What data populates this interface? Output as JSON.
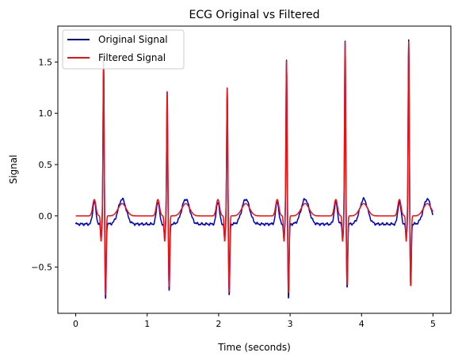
{
  "chart_data": {
    "type": "line",
    "title": "ECG Original vs Filtered",
    "xlabel": "Time (seconds)",
    "ylabel": "Signal",
    "xlim": [
      -0.25,
      5.25
    ],
    "ylim": [
      -0.95,
      1.85
    ],
    "xticks": [
      0,
      1,
      2,
      3,
      4,
      5
    ],
    "xtick_labels": [
      "0",
      "1",
      "2",
      "3",
      "4",
      "5"
    ],
    "yticks": [
      -0.5,
      0.0,
      0.5,
      1.0,
      1.5
    ],
    "ytick_labels": [
      "−0.5",
      "0.0",
      "0.5",
      "1.0",
      "1.5"
    ],
    "grid": false,
    "legend_position": "top-left",
    "beats": [
      {
        "t": 0.39,
        "r_orig": 1.52,
        "r_filt": 1.45,
        "s_orig": -0.82,
        "s_filt": -0.78
      },
      {
        "t": 1.28,
        "r_orig": 1.22,
        "r_filt": 1.21,
        "s_orig": -0.74,
        "s_filt": -0.7
      },
      {
        "t": 2.12,
        "r_orig": 1.25,
        "r_filt": 1.24,
        "s_orig": -0.79,
        "s_filt": -0.75
      },
      {
        "t": 2.95,
        "r_orig": 1.52,
        "r_filt": 1.51,
        "s_orig": -0.81,
        "s_filt": -0.76
      },
      {
        "t": 3.77,
        "r_orig": 1.7,
        "r_filt": 1.69,
        "s_orig": -0.7,
        "s_filt": -0.68
      },
      {
        "t": 4.66,
        "r_orig": 1.72,
        "r_filt": 1.7,
        "s_orig": -0.7,
        "s_filt": -0.69
      }
    ],
    "series": [
      {
        "name": "Original Signal",
        "color": "#0000cc",
        "t_start": 0.0,
        "t_end": 5.0,
        "baseline": -0.08,
        "t_wave_peak": 0.22,
        "q_dip": -0.22,
        "p_wave": 0.18
      },
      {
        "name": "Filtered Signal",
        "color": "#ee1111",
        "t_start": 0.0,
        "t_end": 5.0,
        "baseline": 0.0,
        "t_wave_peak": 0.12,
        "q_dip": -0.25,
        "p_wave": 0.16
      }
    ]
  }
}
